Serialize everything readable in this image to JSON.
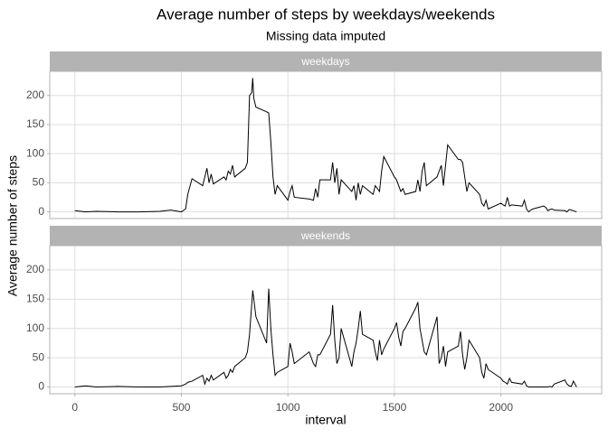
{
  "chart_data": {
    "type": "line",
    "title": "Average number of steps by weekdays/weekends",
    "subtitle": "Missing data imputed",
    "xlabel": "interval",
    "ylabel": "Average number of steps",
    "x": [
      0,
      50,
      100,
      200,
      300,
      400,
      450,
      500,
      520,
      530,
      550,
      600,
      610,
      620,
      630,
      640,
      650,
      700,
      710,
      720,
      730,
      740,
      750,
      800,
      810,
      820,
      830,
      835,
      840,
      850,
      900,
      910,
      920,
      930,
      940,
      950,
      1000,
      1010,
      1020,
      1030,
      1100,
      1120,
      1130,
      1140,
      1150,
      1200,
      1210,
      1220,
      1230,
      1240,
      1250,
      1300,
      1310,
      1320,
      1330,
      1340,
      1350,
      1400,
      1410,
      1420,
      1430,
      1440,
      1450,
      1500,
      1510,
      1520,
      1530,
      1540,
      1550,
      1600,
      1610,
      1620,
      1630,
      1640,
      1650,
      1700,
      1710,
      1720,
      1730,
      1740,
      1750,
      1800,
      1810,
      1820,
      1830,
      1840,
      1850,
      1900,
      1910,
      1920,
      1930,
      1940,
      2000,
      2010,
      2020,
      2030,
      2040,
      2050,
      2100,
      2110,
      2120,
      2130,
      2140,
      2150,
      2200,
      2210,
      2220,
      2230,
      2240,
      2250,
      2300,
      2310,
      2320,
      2330,
      2340,
      2355
    ],
    "series": [
      {
        "name": "weekdays",
        "color": "#000000",
        "values": [
          2,
          0,
          1,
          0,
          0,
          1,
          3,
          0,
          5,
          30,
          57,
          45,
          60,
          75,
          50,
          65,
          48,
          60,
          55,
          70,
          65,
          80,
          60,
          75,
          85,
          200,
          205,
          230,
          195,
          180,
          172,
          170,
          120,
          60,
          30,
          45,
          20,
          35,
          45,
          25,
          22,
          20,
          40,
          25,
          55,
          55,
          85,
          50,
          75,
          30,
          55,
          35,
          45,
          20,
          50,
          30,
          45,
          30,
          45,
          40,
          35,
          70,
          95,
          60,
          55,
          45,
          35,
          40,
          30,
          35,
          55,
          35,
          70,
          85,
          45,
          60,
          70,
          80,
          45,
          80,
          115,
          90,
          90,
          85,
          60,
          35,
          50,
          30,
          15,
          10,
          20,
          5,
          15,
          12,
          10,
          25,
          10,
          12,
          10,
          20,
          5,
          0,
          3,
          5,
          10,
          8,
          2,
          4,
          5,
          3,
          2,
          0,
          4,
          3,
          2,
          0
        ]
      },
      {
        "name": "weekends",
        "color": "#000000",
        "values": [
          0,
          2,
          0,
          1,
          0,
          0,
          1,
          2,
          5,
          8,
          10,
          20,
          5,
          15,
          10,
          20,
          12,
          25,
          15,
          20,
          30,
          25,
          35,
          50,
          60,
          90,
          140,
          165,
          150,
          120,
          75,
          168,
          100,
          55,
          20,
          25,
          35,
          75,
          60,
          40,
          60,
          40,
          35,
          55,
          55,
          90,
          140,
          80,
          40,
          50,
          100,
          35,
          60,
          75,
          100,
          130,
          90,
          80,
          60,
          45,
          80,
          55,
          65,
          100,
          110,
          85,
          70,
          95,
          100,
          135,
          145,
          100,
          80,
          60,
          55,
          120,
          40,
          50,
          70,
          35,
          60,
          70,
          95,
          55,
          30,
          50,
          80,
          50,
          25,
          15,
          40,
          30,
          15,
          10,
          8,
          5,
          15,
          8,
          5,
          10,
          2,
          0,
          0,
          0,
          0,
          0,
          0,
          1,
          0,
          5,
          12,
          5,
          2,
          1,
          10,
          0
        ]
      }
    ],
    "xlim": [
      -117.75,
      2472.75
    ],
    "xticks": [
      0,
      500,
      1000,
      1500,
      2000
    ],
    "ylim": [
      -11.5,
      241.5
    ],
    "yticks": [
      0,
      50,
      100,
      150,
      200
    ],
    "grid": true
  }
}
